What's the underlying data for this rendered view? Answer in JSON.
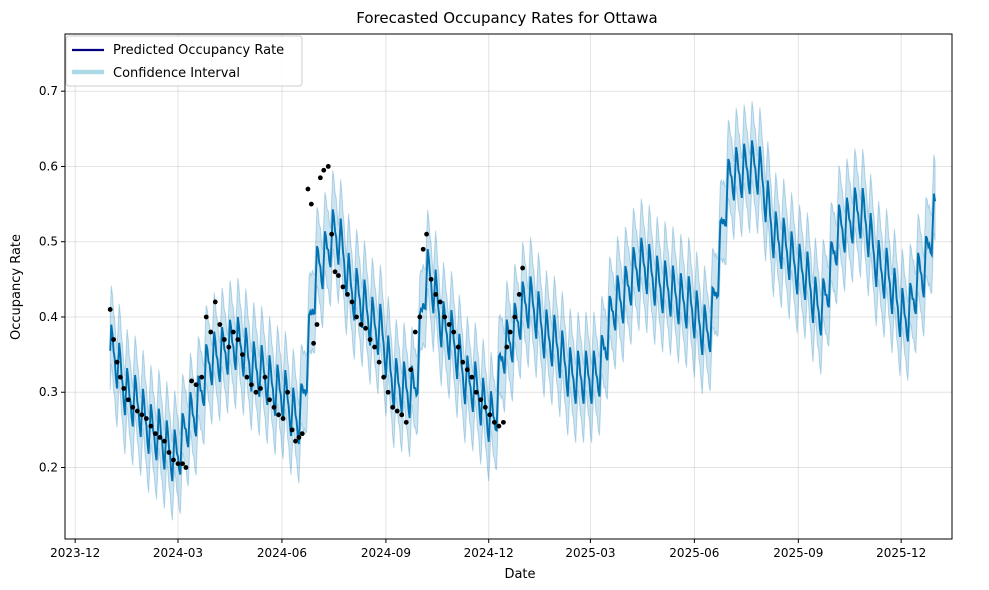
{
  "chart_data": {
    "type": "line",
    "title": "Forecasted Occupancy Rates for Ottawa",
    "xlabel": "Date",
    "ylabel": "Occupancy Rate",
    "x_ticks": [
      "2023-12",
      "2024-03",
      "2024-06",
      "2024-09",
      "2024-12",
      "2025-03",
      "2025-06",
      "2025-09",
      "2025-12"
    ],
    "y_ticks": [
      0.2,
      0.3,
      0.4,
      0.5,
      0.6,
      0.7
    ],
    "xlim": [
      "2023-11-22",
      "2026-01-15"
    ],
    "ylim": [
      0.105,
      0.776
    ],
    "grid": true,
    "legend_position": "top-left",
    "legend": [
      {
        "label": "Predicted Occupancy Rate",
        "color": "#000080"
      },
      {
        "label": "Confidence Interval",
        "color": "#add8e6"
      }
    ],
    "colors": {
      "forecast_line": "#0072b2",
      "interval_fill": "#0072b2",
      "actual_points": "#000000"
    },
    "forecast_trend": {
      "dates": [
        "2024-01-01",
        "2024-01-20",
        "2024-02-10",
        "2024-02-28",
        "2024-03-12",
        "2024-04-01",
        "2024-04-22",
        "2024-05-10",
        "2024-05-31",
        "2024-06-15",
        "2024-07-05",
        "2024-07-18",
        "2024-08-05",
        "2024-08-25",
        "2024-09-10",
        "2024-09-25",
        "2024-10-08",
        "2024-10-25",
        "2024-11-15",
        "2024-12-05",
        "2024-12-15",
        "2025-01-05",
        "2025-01-25",
        "2025-02-15",
        "2025-03-05",
        "2025-03-25",
        "2025-04-15",
        "2025-05-05",
        "2025-05-25",
        "2025-06-12",
        "2025-07-05",
        "2025-07-25",
        "2025-08-15",
        "2025-09-05",
        "2025-09-20",
        "2025-10-10",
        "2025-10-25",
        "2025-11-15",
        "2025-12-05",
        "2025-12-20",
        "2025-12-31"
      ],
      "values": [
        0.355,
        0.29,
        0.245,
        0.215,
        0.265,
        0.345,
        0.365,
        0.33,
        0.3,
        0.265,
        0.47,
        0.51,
        0.43,
        0.385,
        0.31,
        0.3,
        0.455,
        0.38,
        0.31,
        0.265,
        0.36,
        0.42,
        0.37,
        0.32,
        0.32,
        0.42,
        0.47,
        0.44,
        0.42,
        0.38,
        0.59,
        0.6,
        0.5,
        0.46,
        0.41,
        0.52,
        0.54,
        0.46,
        0.4,
        0.46,
        0.53
      ]
    },
    "weekly_amplitude": 0.035,
    "interval_half_width": 0.052,
    "actual_points": [
      [
        "2024-01-01",
        0.41
      ],
      [
        "2024-01-04",
        0.37
      ],
      [
        "2024-01-07",
        0.34
      ],
      [
        "2024-01-10",
        0.32
      ],
      [
        "2024-01-13",
        0.305
      ],
      [
        "2024-01-17",
        0.29
      ],
      [
        "2024-01-21",
        0.28
      ],
      [
        "2024-01-25",
        0.275
      ],
      [
        "2024-01-29",
        0.27
      ],
      [
        "2024-02-02",
        0.265
      ],
      [
        "2024-02-06",
        0.255
      ],
      [
        "2024-02-10",
        0.245
      ],
      [
        "2024-02-14",
        0.24
      ],
      [
        "2024-02-18",
        0.235
      ],
      [
        "2024-02-22",
        0.22
      ],
      [
        "2024-02-26",
        0.21
      ],
      [
        "2024-03-01",
        0.205
      ],
      [
        "2024-03-05",
        0.205
      ],
      [
        "2024-03-08",
        0.2
      ],
      [
        "2024-03-13",
        0.315
      ],
      [
        "2024-03-17",
        0.31
      ],
      [
        "2024-03-22",
        0.32
      ],
      [
        "2024-03-26",
        0.4
      ],
      [
        "2024-03-30",
        0.38
      ],
      [
        "2024-04-03",
        0.42
      ],
      [
        "2024-04-07",
        0.39
      ],
      [
        "2024-04-11",
        0.37
      ],
      [
        "2024-04-15",
        0.36
      ],
      [
        "2024-04-19",
        0.38
      ],
      [
        "2024-04-23",
        0.37
      ],
      [
        "2024-04-27",
        0.35
      ],
      [
        "2024-05-01",
        0.32
      ],
      [
        "2024-05-05",
        0.31
      ],
      [
        "2024-05-09",
        0.3
      ],
      [
        "2024-05-13",
        0.305
      ],
      [
        "2024-05-17",
        0.32
      ],
      [
        "2024-05-21",
        0.29
      ],
      [
        "2024-05-25",
        0.28
      ],
      [
        "2024-05-29",
        0.27
      ],
      [
        "2024-06-02",
        0.265
      ],
      [
        "2024-06-06",
        0.3
      ],
      [
        "2024-06-10",
        0.25
      ],
      [
        "2024-06-13",
        0.235
      ],
      [
        "2024-06-16",
        0.24
      ],
      [
        "2024-06-19",
        0.245
      ],
      [
        "2024-06-24",
        0.57
      ],
      [
        "2024-06-27",
        0.55
      ],
      [
        "2024-06-29",
        0.365
      ],
      [
        "2024-07-02",
        0.39
      ],
      [
        "2024-07-05",
        0.585
      ],
      [
        "2024-07-08",
        0.595
      ],
      [
        "2024-07-12",
        0.6
      ],
      [
        "2024-07-15",
        0.51
      ],
      [
        "2024-07-18",
        0.46
      ],
      [
        "2024-07-21",
        0.455
      ],
      [
        "2024-07-25",
        0.44
      ],
      [
        "2024-07-29",
        0.43
      ],
      [
        "2024-08-02",
        0.42
      ],
      [
        "2024-08-06",
        0.4
      ],
      [
        "2024-08-10",
        0.39
      ],
      [
        "2024-08-14",
        0.385
      ],
      [
        "2024-08-18",
        0.37
      ],
      [
        "2024-08-22",
        0.36
      ],
      [
        "2024-08-26",
        0.34
      ],
      [
        "2024-08-30",
        0.32
      ],
      [
        "2024-09-03",
        0.3
      ],
      [
        "2024-09-07",
        0.28
      ],
      [
        "2024-09-11",
        0.275
      ],
      [
        "2024-09-15",
        0.27
      ],
      [
        "2024-09-19",
        0.26
      ],
      [
        "2024-09-23",
        0.33
      ],
      [
        "2024-09-27",
        0.38
      ],
      [
        "2024-10-01",
        0.4
      ],
      [
        "2024-10-04",
        0.49
      ],
      [
        "2024-10-07",
        0.51
      ],
      [
        "2024-10-11",
        0.45
      ],
      [
        "2024-10-15",
        0.43
      ],
      [
        "2024-10-19",
        0.42
      ],
      [
        "2024-10-23",
        0.4
      ],
      [
        "2024-10-27",
        0.39
      ],
      [
        "2024-10-31",
        0.38
      ],
      [
        "2024-11-04",
        0.36
      ],
      [
        "2024-11-08",
        0.34
      ],
      [
        "2024-11-12",
        0.33
      ],
      [
        "2024-11-16",
        0.32
      ],
      [
        "2024-11-20",
        0.3
      ],
      [
        "2024-11-24",
        0.29
      ],
      [
        "2024-11-28",
        0.28
      ],
      [
        "2024-12-02",
        0.27
      ],
      [
        "2024-12-06",
        0.26
      ],
      [
        "2024-12-10",
        0.255
      ],
      [
        "2024-12-14",
        0.26
      ],
      [
        "2024-12-17",
        0.36
      ],
      [
        "2024-12-20",
        0.38
      ],
      [
        "2024-12-24",
        0.4
      ],
      [
        "2024-12-28",
        0.43
      ],
      [
        "2024-12-31",
        0.465
      ]
    ]
  }
}
